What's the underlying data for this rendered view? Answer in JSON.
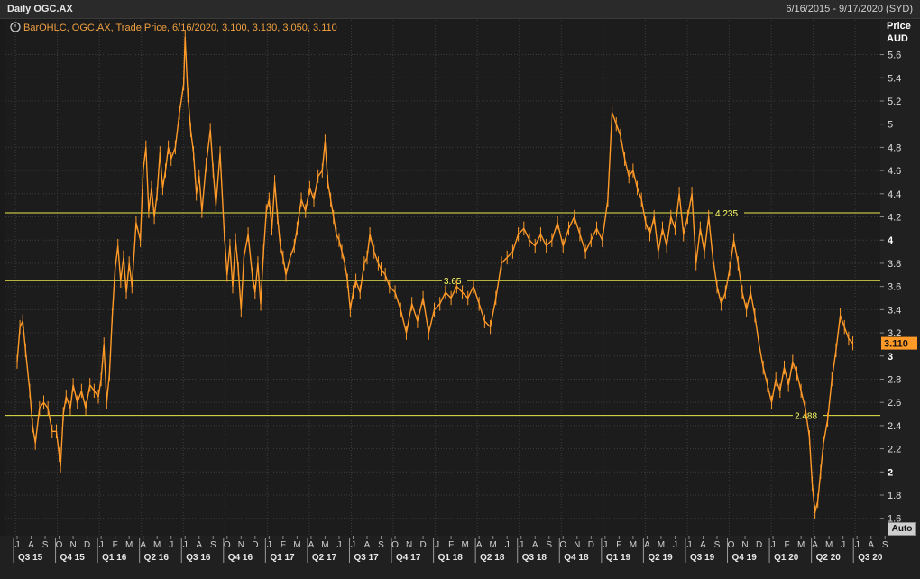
{
  "header": {
    "title": "Daily OGC.AX",
    "date_range": "6/16/2015 - 9/17/2020 (SYD)"
  },
  "legend": {
    "icon": "clock-icon",
    "text": "BarOHLC, OGC.AX, Trade Price, 6/16/2020, 3.100, 3.130, 3.050, 3.110"
  },
  "axis": {
    "price_label": "Price",
    "currency_label": "AUD",
    "last_price_tag": "3.110",
    "auto_button": "Auto"
  },
  "colors": {
    "series": "#ff9a28",
    "hline": "#e8e84a",
    "background": "#1c1c1c",
    "grid": "#3c3c3c",
    "last_price_tag": "#ff9a28"
  },
  "chart_data": {
    "type": "line",
    "title": "Daily OGC.AX",
    "xlabel": "",
    "ylabel": "Price AUD",
    "ylim": [
      1.45,
      5.9
    ],
    "yticks": [
      1.6,
      1.8,
      2,
      2.2,
      2.4,
      2.6,
      2.8,
      3,
      3.2,
      3.4,
      3.6,
      3.8,
      4,
      4.2,
      4.4,
      4.6,
      4.8,
      5,
      5.2,
      5.4,
      5.6
    ],
    "ytick_labels": [
      "1.6",
      "1.8",
      "2",
      "2.2",
      "2.4",
      "2.6",
      "2.8",
      "3",
      "3.2",
      "3.4",
      "3.6",
      "3.8",
      "4",
      "4.2",
      "4.4",
      "4.6",
      "4.8",
      "5",
      "5.2",
      "5.4",
      "5.6"
    ],
    "grid": true,
    "months": [
      "J",
      "A",
      "S",
      "O",
      "N",
      "D",
      "J",
      "F",
      "M",
      "A",
      "M",
      "J",
      "J",
      "A",
      "S",
      "O",
      "N",
      "D",
      "J",
      "F",
      "M",
      "A",
      "M",
      "J",
      "J",
      "A",
      "S",
      "O",
      "N",
      "D",
      "J",
      "F",
      "M",
      "A",
      "M",
      "J",
      "J",
      "A",
      "S",
      "O",
      "N",
      "D",
      "J",
      "F",
      "M",
      "A",
      "M",
      "J",
      "J",
      "A",
      "S",
      "O",
      "N",
      "D",
      "J",
      "F",
      "M",
      "A",
      "M",
      "J",
      "J",
      "A",
      "S"
    ],
    "quarters": [
      {
        "label": "Q3 15",
        "start_month": 0
      },
      {
        "label": "Q4 15",
        "start_month": 3
      },
      {
        "label": "Q1 16",
        "start_month": 6
      },
      {
        "label": "Q2 16",
        "start_month": 9
      },
      {
        "label": "Q3 16",
        "start_month": 12
      },
      {
        "label": "Q4 16",
        "start_month": 15
      },
      {
        "label": "Q1 17",
        "start_month": 18
      },
      {
        "label": "Q2 17",
        "start_month": 21
      },
      {
        "label": "Q3 17",
        "start_month": 24
      },
      {
        "label": "Q4 17",
        "start_month": 27
      },
      {
        "label": "Q1 18",
        "start_month": 30
      },
      {
        "label": "Q2 18",
        "start_month": 33
      },
      {
        "label": "Q3 18",
        "start_month": 36
      },
      {
        "label": "Q4 18",
        "start_month": 39
      },
      {
        "label": "Q1 19",
        "start_month": 42
      },
      {
        "label": "Q2 19",
        "start_month": 45
      },
      {
        "label": "Q3 19",
        "start_month": 48
      },
      {
        "label": "Q4 19",
        "start_month": 51
      },
      {
        "label": "Q1 20",
        "start_month": 54
      },
      {
        "label": "Q2 20",
        "start_month": 57
      },
      {
        "label": "Q3 20",
        "start_month": 60
      }
    ],
    "horizontal_lines": [
      {
        "value": 4.235,
        "label": "4.235"
      },
      {
        "value": 3.65,
        "label": "3.65"
      },
      {
        "value": 2.488,
        "label": "2.488"
      }
    ],
    "series": [
      {
        "name": "OGC.AX",
        "points_month_price": [
          [
            0.0,
            2.95
          ],
          [
            0.2,
            3.25
          ],
          [
            0.4,
            3.3
          ],
          [
            0.6,
            3.05
          ],
          [
            0.9,
            2.7
          ],
          [
            1.1,
            2.4
          ],
          [
            1.3,
            2.25
          ],
          [
            1.6,
            2.55
          ],
          [
            1.9,
            2.6
          ],
          [
            2.2,
            2.55
          ],
          [
            2.5,
            2.35
          ],
          [
            2.8,
            2.35
          ],
          [
            3.0,
            2.15
          ],
          [
            3.1,
            2.05
          ],
          [
            3.3,
            2.5
          ],
          [
            3.5,
            2.65
          ],
          [
            3.8,
            2.55
          ],
          [
            4.0,
            2.75
          ],
          [
            4.3,
            2.6
          ],
          [
            4.6,
            2.7
          ],
          [
            4.9,
            2.55
          ],
          [
            5.2,
            2.75
          ],
          [
            5.5,
            2.7
          ],
          [
            5.8,
            2.65
          ],
          [
            6.0,
            2.8
          ],
          [
            6.2,
            3.1
          ],
          [
            6.4,
            2.6
          ],
          [
            6.6,
            2.85
          ],
          [
            6.8,
            3.35
          ],
          [
            7.0,
            3.75
          ],
          [
            7.2,
            3.95
          ],
          [
            7.4,
            3.65
          ],
          [
            7.6,
            3.85
          ],
          [
            7.8,
            3.55
          ],
          [
            8.0,
            3.8
          ],
          [
            8.2,
            3.6
          ],
          [
            8.5,
            4.15
          ],
          [
            8.8,
            4.0
          ],
          [
            9.0,
            4.6
          ],
          [
            9.2,
            4.8
          ],
          [
            9.4,
            4.25
          ],
          [
            9.6,
            4.45
          ],
          [
            9.8,
            4.2
          ],
          [
            10.0,
            4.4
          ],
          [
            10.2,
            4.75
          ],
          [
            10.4,
            4.45
          ],
          [
            10.6,
            4.6
          ],
          [
            10.8,
            4.8
          ],
          [
            11.0,
            4.7
          ],
          [
            11.3,
            4.8
          ],
          [
            11.6,
            5.1
          ],
          [
            11.9,
            5.35
          ],
          [
            12.0,
            5.75
          ],
          [
            12.2,
            5.25
          ],
          [
            12.4,
            4.95
          ],
          [
            12.6,
            4.75
          ],
          [
            12.8,
            4.4
          ],
          [
            13.0,
            4.55
          ],
          [
            13.2,
            4.25
          ],
          [
            13.5,
            4.65
          ],
          [
            13.8,
            4.95
          ],
          [
            14.0,
            4.6
          ],
          [
            14.2,
            4.3
          ],
          [
            14.5,
            4.75
          ],
          [
            14.8,
            4.05
          ],
          [
            15.0,
            3.7
          ],
          [
            15.2,
            3.95
          ],
          [
            15.4,
            3.6
          ],
          [
            15.6,
            4.0
          ],
          [
            15.8,
            3.75
          ],
          [
            16.0,
            3.4
          ],
          [
            16.2,
            3.85
          ],
          [
            16.5,
            4.05
          ],
          [
            16.8,
            3.7
          ],
          [
            17.0,
            3.55
          ],
          [
            17.2,
            3.8
          ],
          [
            17.4,
            3.45
          ],
          [
            17.6,
            3.9
          ],
          [
            17.8,
            4.25
          ],
          [
            18.0,
            4.35
          ],
          [
            18.2,
            4.1
          ],
          [
            18.4,
            4.5
          ],
          [
            18.6,
            4.2
          ],
          [
            18.8,
            3.95
          ],
          [
            19.0,
            3.85
          ],
          [
            19.2,
            3.7
          ],
          [
            19.5,
            3.85
          ],
          [
            19.8,
            3.95
          ],
          [
            20.0,
            4.1
          ],
          [
            20.3,
            4.35
          ],
          [
            20.6,
            4.25
          ],
          [
            20.9,
            4.45
          ],
          [
            21.2,
            4.35
          ],
          [
            21.5,
            4.55
          ],
          [
            21.8,
            4.6
          ],
          [
            22.0,
            4.85
          ],
          [
            22.2,
            4.5
          ],
          [
            22.4,
            4.35
          ],
          [
            22.6,
            4.2
          ],
          [
            22.8,
            4.05
          ],
          [
            23.0,
            4.0
          ],
          [
            23.2,
            3.9
          ],
          [
            23.4,
            3.8
          ],
          [
            23.6,
            3.65
          ],
          [
            23.8,
            3.4
          ],
          [
            24.0,
            3.55
          ],
          [
            24.2,
            3.65
          ],
          [
            24.5,
            3.55
          ],
          [
            24.8,
            3.8
          ],
          [
            25.0,
            3.85
          ],
          [
            25.2,
            4.05
          ],
          [
            25.5,
            3.9
          ],
          [
            25.8,
            3.8
          ],
          [
            26.0,
            3.75
          ],
          [
            26.3,
            3.7
          ],
          [
            26.6,
            3.6
          ],
          [
            27.0,
            3.55
          ],
          [
            27.4,
            3.4
          ],
          [
            27.8,
            3.2
          ],
          [
            28.2,
            3.45
          ],
          [
            28.6,
            3.3
          ],
          [
            29.0,
            3.5
          ],
          [
            29.4,
            3.2
          ],
          [
            29.8,
            3.4
          ],
          [
            30.2,
            3.45
          ],
          [
            30.6,
            3.55
          ],
          [
            31.0,
            3.5
          ],
          [
            31.4,
            3.6
          ],
          [
            31.8,
            3.55
          ],
          [
            32.2,
            3.5
          ],
          [
            32.6,
            3.6
          ],
          [
            33.0,
            3.45
          ],
          [
            33.4,
            3.3
          ],
          [
            33.8,
            3.25
          ],
          [
            34.2,
            3.5
          ],
          [
            34.6,
            3.8
          ],
          [
            35.0,
            3.85
          ],
          [
            35.4,
            3.9
          ],
          [
            35.8,
            4.05
          ],
          [
            36.2,
            4.1
          ],
          [
            36.6,
            4.0
          ],
          [
            37.0,
            3.95
          ],
          [
            37.4,
            4.05
          ],
          [
            37.8,
            3.95
          ],
          [
            38.2,
            4.0
          ],
          [
            38.6,
            4.15
          ],
          [
            39.0,
            3.95
          ],
          [
            39.4,
            4.1
          ],
          [
            39.8,
            4.2
          ],
          [
            40.2,
            4.05
          ],
          [
            40.6,
            3.9
          ],
          [
            41.0,
            4.0
          ],
          [
            41.4,
            4.1
          ],
          [
            41.8,
            4.0
          ],
          [
            42.2,
            4.35
          ],
          [
            42.5,
            5.1
          ],
          [
            42.8,
            5.0
          ],
          [
            43.1,
            4.9
          ],
          [
            43.4,
            4.7
          ],
          [
            43.7,
            4.55
          ],
          [
            44.0,
            4.6
          ],
          [
            44.3,
            4.45
          ],
          [
            44.6,
            4.35
          ],
          [
            44.9,
            4.15
          ],
          [
            45.2,
            4.05
          ],
          [
            45.5,
            4.2
          ],
          [
            45.8,
            3.9
          ],
          [
            46.1,
            4.1
          ],
          [
            46.4,
            3.95
          ],
          [
            46.7,
            4.2
          ],
          [
            47.0,
            4.1
          ],
          [
            47.3,
            4.4
          ],
          [
            47.6,
            4.05
          ],
          [
            47.9,
            4.2
          ],
          [
            48.2,
            4.4
          ],
          [
            48.5,
            3.8
          ],
          [
            48.8,
            4.1
          ],
          [
            49.1,
            3.9
          ],
          [
            49.4,
            4.2
          ],
          [
            49.7,
            3.85
          ],
          [
            50.0,
            3.6
          ],
          [
            50.3,
            3.45
          ],
          [
            50.6,
            3.55
          ],
          [
            50.9,
            3.75
          ],
          [
            51.2,
            4.0
          ],
          [
            51.5,
            3.8
          ],
          [
            51.8,
            3.55
          ],
          [
            52.1,
            3.4
          ],
          [
            52.4,
            3.55
          ],
          [
            52.7,
            3.35
          ],
          [
            53.0,
            3.1
          ],
          [
            53.3,
            2.9
          ],
          [
            53.6,
            2.75
          ],
          [
            53.9,
            2.6
          ],
          [
            54.2,
            2.8
          ],
          [
            54.5,
            2.7
          ],
          [
            54.8,
            2.9
          ],
          [
            55.1,
            2.75
          ],
          [
            55.4,
            2.95
          ],
          [
            55.7,
            2.85
          ],
          [
            56.0,
            2.7
          ],
          [
            56.3,
            2.55
          ],
          [
            56.6,
            2.3
          ],
          [
            56.8,
            1.9
          ],
          [
            57.0,
            1.65
          ],
          [
            57.2,
            1.75
          ],
          [
            57.4,
            2.0
          ],
          [
            57.6,
            2.25
          ],
          [
            57.9,
            2.45
          ],
          [
            58.2,
            2.8
          ],
          [
            58.5,
            3.05
          ],
          [
            58.8,
            3.35
          ],
          [
            59.1,
            3.25
          ],
          [
            59.4,
            3.15
          ],
          [
            59.7,
            3.11
          ]
        ]
      }
    ]
  }
}
